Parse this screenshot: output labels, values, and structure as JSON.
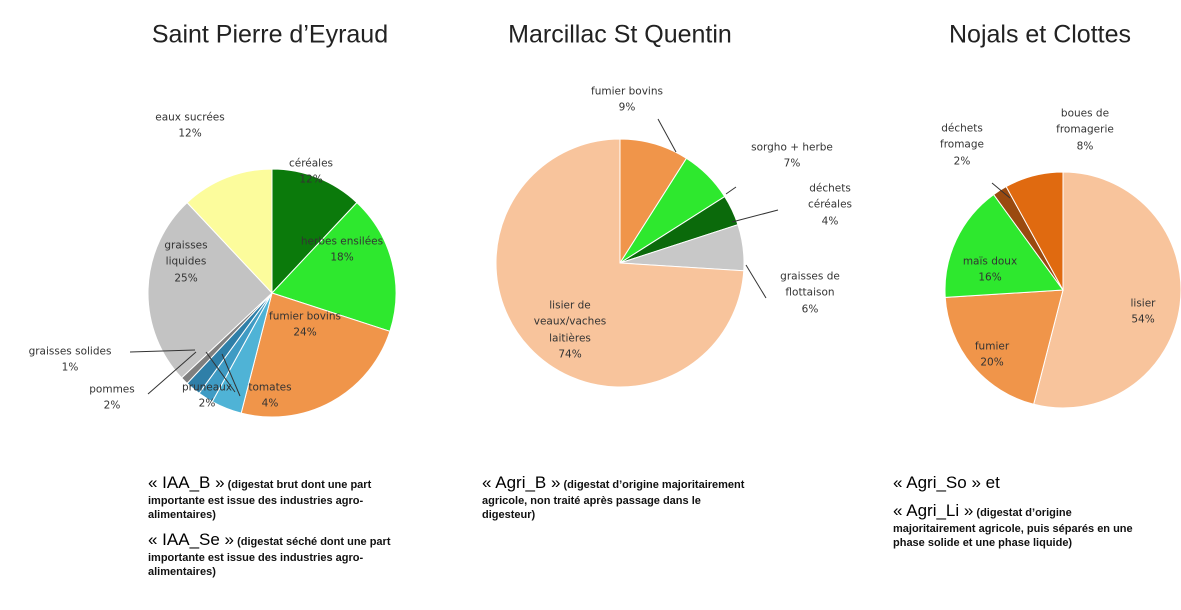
{
  "chart_data": [
    {
      "type": "pie",
      "title": "Saint Pierre d’Eyraud",
      "categories": [
        "céréales",
        "herbes ensilées",
        "fumier bovins",
        "tomates",
        "pruneaux",
        "pommes",
        "graisses solides",
        "graisses liquides",
        "eaux sucrées"
      ],
      "values": [
        12,
        18,
        24,
        4,
        2,
        2,
        1,
        25,
        12
      ],
      "value_labels": [
        "12%",
        "18%",
        "24%",
        "4%",
        "2%",
        "2%",
        "1%",
        "25%",
        "12%"
      ],
      "colors": [
        "#0b7a0b",
        "#2ee82e",
        "#f0954a",
        "#4fb3d6",
        "#3f9bc4",
        "#2f7fa8",
        "#7f7f7f",
        "#c3c3c3",
        "#fcfc9c"
      ],
      "annotations": [
        {
          "code": "« IAA_B »",
          "text": "(digestat brut dont une part importante est issue des industries agro-alimentaires)"
        },
        {
          "code": "« IAA_Se »",
          "text": "(digestat séché dont une part importante est issue des industries agro-alimentaires)"
        }
      ]
    },
    {
      "type": "pie",
      "title": "Marcillac St Quentin",
      "categories": [
        "fumier bovins",
        "sorgho + herbe",
        "déchets céréales",
        "graisses de flottaison",
        "lisier de veaux/vaches laitières"
      ],
      "values": [
        9,
        7,
        4,
        6,
        74
      ],
      "value_labels": [
        "9%",
        "7%",
        "4%",
        "6%",
        "74%"
      ],
      "colors": [
        "#f0954a",
        "#2ee82e",
        "#0b6a0b",
        "#c8c8c8",
        "#f8c49c"
      ],
      "annotations": [
        {
          "code": "« Agri_B »",
          "text": "(digestat d’origine majoritairement agricole, non traité après passage dans le digesteur)"
        }
      ]
    },
    {
      "type": "pie",
      "title": "Nojals et Clottes",
      "categories": [
        "lisier",
        "fumier",
        "maïs doux",
        "déchets fromage",
        "boues de fromagerie"
      ],
      "values": [
        54,
        20,
        16,
        2,
        8
      ],
      "value_labels": [
        "54%",
        "20%",
        "16%",
        "2%",
        "8%"
      ],
      "colors": [
        "#f8c49c",
        "#f0954a",
        "#2ee82e",
        "#9a4a10",
        "#e06a10"
      ],
      "annotations": [
        {
          "code": "« Agri_So » et"
        },
        {
          "code": "« Agri_Li »",
          "text": "(digestat d’origine majoritairement agricole, puis séparés en une phase solide et une phase liquide)"
        }
      ]
    }
  ]
}
